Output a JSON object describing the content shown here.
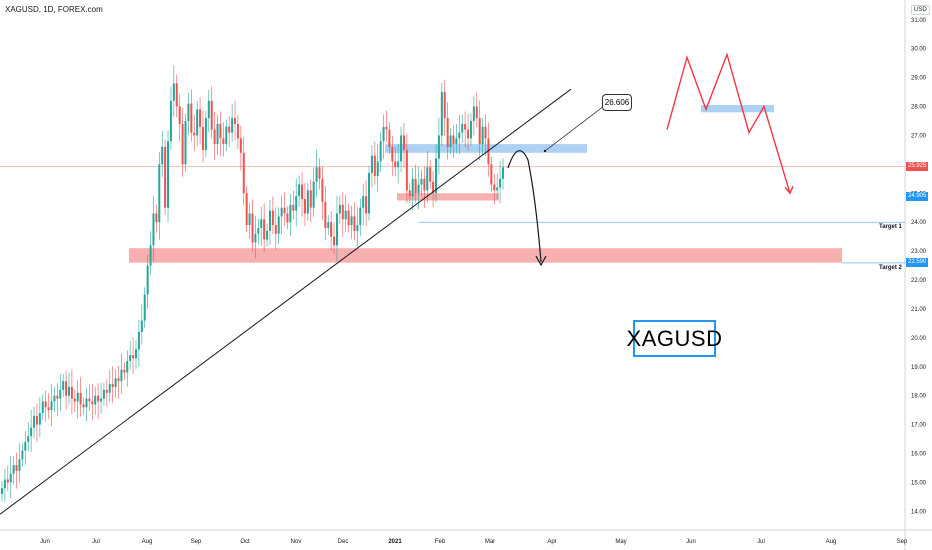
{
  "header": {
    "symbol_line": "XAGUSD, 1D, FOREX.com"
  },
  "currency_label": "USD",
  "symbol_box": "XAGUSD",
  "callout_value": "26.606",
  "price_tags": [
    {
      "text": "25.925",
      "value": 25.925,
      "color": "#ef5350"
    },
    {
      "text": "24.905",
      "value": 24.905,
      "color": "#2196f3"
    },
    {
      "text": "22.590",
      "value": 22.59,
      "color": "#2196f3"
    }
  ],
  "targets": [
    {
      "text": "Target 1",
      "value": 24.0
    },
    {
      "text": "Target 2",
      "value": 22.59
    }
  ],
  "colors": {
    "up": "#26a69a",
    "down": "#ef5350",
    "zone_red": "#f7a1a1",
    "zone_blue": "#9ec9f0",
    "scenario": "#f23645"
  },
  "chart_data": {
    "type": "candlestick",
    "ylim": [
      13.7,
      31.2
    ],
    "y_ticks": [
      14,
      15,
      16,
      17,
      18,
      19,
      20,
      21,
      22,
      23,
      24,
      25,
      26,
      27,
      28,
      29,
      30,
      31
    ],
    "y_tick_labels": [
      "14.00",
      "15.00",
      "16.00",
      "17.00",
      "18.00",
      "19.00",
      "20.00",
      "21.00",
      "22.00",
      "23.00",
      "24.00",
      "25.00",
      "26.00",
      "27.00",
      "28.00",
      "29.00",
      "30.00",
      "31.00"
    ],
    "x_month_labels": [
      "Jun",
      "Jul",
      "Aug",
      "Sep",
      "Oct",
      "Nov",
      "Dec",
      "2021",
      "Feb",
      "Mar",
      "Apr",
      "May",
      "Jun",
      "Jul",
      "Aug",
      "Sep"
    ],
    "closes": [
      14.8,
      15.1,
      15.0,
      15.3,
      15.6,
      15.4,
      15.8,
      16.1,
      16.4,
      16.6,
      16.9,
      17.3,
      17.0,
      17.4,
      17.8,
      17.6,
      17.5,
      17.8,
      18.0,
      17.9,
      18.2,
      18.5,
      18.0,
      18.3,
      17.9,
      17.8,
      18.1,
      17.7,
      17.6,
      17.9,
      17.8,
      17.7,
      18.0,
      17.8,
      17.9,
      18.2,
      18.1,
      18.4,
      18.3,
      18.6,
      18.5,
      18.9,
      18.8,
      19.2,
      19.4,
      19.3,
      19.6,
      20.2,
      20.6,
      21.5,
      22.5,
      23.2,
      24.3,
      24.0,
      26.0,
      26.6,
      24.5,
      26.8,
      28.2,
      28.8,
      28.0,
      27.4,
      26.0,
      27.5,
      28.1,
      27.1,
      27.0,
      27.9,
      27.3,
      26.5,
      27.6,
      28.2,
      27.2,
      26.7,
      27.4,
      26.9,
      26.7,
      27.3,
      27.1,
      27.6,
      27.4,
      26.9,
      26.4,
      25.0,
      23.9,
      24.3,
      23.3,
      23.6,
      23.8,
      24.1,
      23.4,
      23.7,
      24.4,
      23.9,
      23.6,
      24.2,
      24.5,
      24.3,
      24.0,
      24.6,
      24.4,
      24.9,
      25.3,
      24.8,
      24.3,
      25.1,
      24.5,
      25.4,
      25.9,
      25.5,
      24.7,
      23.8,
      24.0,
      23.5,
      23.2,
      24.3,
      24.6,
      24.1,
      24.4,
      23.9,
      24.2,
      23.7,
      23.9,
      24.5,
      24.9,
      24.3,
      25.7,
      26.3,
      25.6,
      26.1,
      26.8,
      27.3,
      27.2,
      26.6,
      26.1,
      25.9,
      26.1,
      27.0,
      26.5,
      25.1,
      24.9,
      25.5,
      25.0,
      25.3,
      25.5,
      25.1,
      25.9,
      25.4,
      25.0,
      26.2,
      27.0,
      28.5,
      27.6,
      26.6,
      27.0,
      26.7,
      26.9,
      27.1,
      27.4,
      27.2,
      26.9,
      27.5,
      28.0,
      27.6,
      26.7,
      27.3,
      26.9,
      26.0,
      25.3,
      25.1,
      25.2,
      25.5,
      25.9
    ],
    "trendline": {
      "from": [
        "late May",
        13.9
      ],
      "to": [
        "mid Mar",
        28.6
      ]
    },
    "zones": [
      {
        "color": "red",
        "low": 22.6,
        "high": 23.1,
        "from": "Jul",
        "to": "mid Aug next"
      },
      {
        "color": "red",
        "low": 24.75,
        "high": 25.0,
        "from": "Dec",
        "to": "Mar"
      },
      {
        "color": "blue",
        "low": 26.4,
        "high": 26.7,
        "from": "Dec",
        "to": "Apr"
      },
      {
        "color": "blue",
        "low": 27.8,
        "high": 28.05,
        "from": "Jun",
        "to": "Jul"
      }
    ],
    "scenario_path": [
      27.2,
      29.7,
      27.9,
      29.8,
      27.1,
      28.0,
      25.0
    ]
  }
}
